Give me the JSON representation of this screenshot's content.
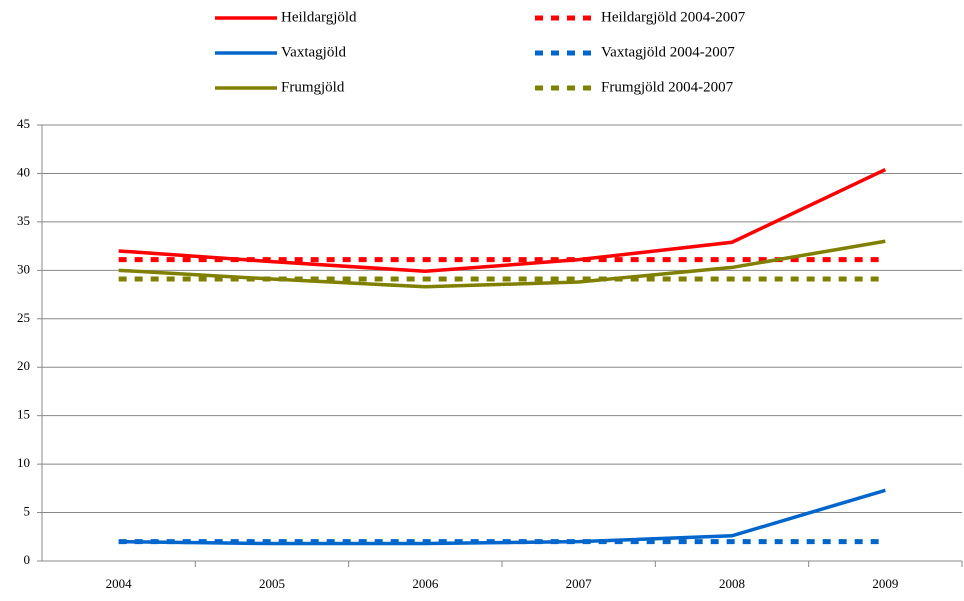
{
  "chart_data": {
    "type": "line",
    "categories": [
      "2004",
      "2005",
      "2006",
      "2007",
      "2008",
      "2009"
    ],
    "series": [
      {
        "name": "Heildargjöld",
        "color": "#ff0000",
        "dashed": false,
        "values": [
          32.0,
          30.9,
          29.9,
          31.1,
          32.9,
          40.4
        ]
      },
      {
        "name": "Heildargjöld 2004-2007",
        "color": "#ff0000",
        "dashed": true,
        "values": [
          31.1,
          31.1,
          31.1,
          31.1,
          31.1,
          31.1
        ]
      },
      {
        "name": "Vaxtagjöld",
        "color": "#0066cc",
        "dashed": false,
        "values": [
          2.0,
          1.8,
          1.8,
          2.0,
          2.6,
          7.3
        ]
      },
      {
        "name": "Vaxtagjöld 2004-2007",
        "color": "#0066cc",
        "dashed": true,
        "values": [
          2.0,
          2.0,
          2.0,
          2.0,
          2.0,
          2.0
        ]
      },
      {
        "name": "Frumgjöld",
        "color": "#808000",
        "dashed": false,
        "values": [
          30.0,
          29.1,
          28.3,
          28.8,
          30.3,
          33.0
        ]
      },
      {
        "name": "Frumgjöld 2004-2007",
        "color": "#808000",
        "dashed": true,
        "values": [
          29.1,
          29.1,
          29.1,
          29.1,
          29.1,
          29.1
        ]
      }
    ],
    "ylim": [
      0,
      45
    ],
    "yticks": [
      0,
      5,
      10,
      15,
      20,
      25,
      30,
      35,
      40,
      45
    ],
    "grid": true,
    "legend": "top"
  }
}
